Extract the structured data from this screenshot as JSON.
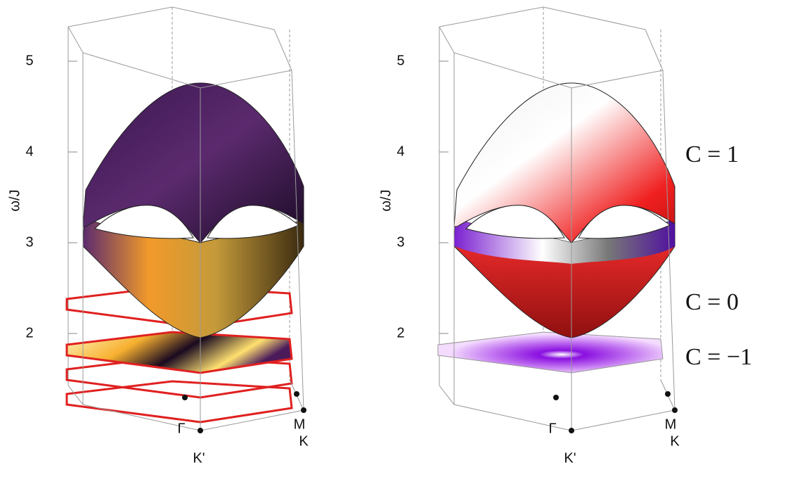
{
  "chart_data": [
    {
      "type": "surface3d",
      "ylabel": "ω/J",
      "ylim": [
        1.3,
        5.35
      ],
      "yticks": [
        2,
        3,
        4,
        5
      ],
      "point_labels": [
        "Γ",
        "K'",
        "M",
        "K"
      ]
    },
    {
      "type": "surface3d",
      "ylabel": "ω/J",
      "ylim": [
        1.3,
        5.35
      ],
      "yticks": [
        2,
        3,
        4,
        5
      ],
      "point_labels": [
        "Γ",
        "K'",
        "M",
        "K"
      ],
      "annotations": [
        "C = 1",
        "C = 0",
        "C = −1"
      ]
    }
  ]
}
